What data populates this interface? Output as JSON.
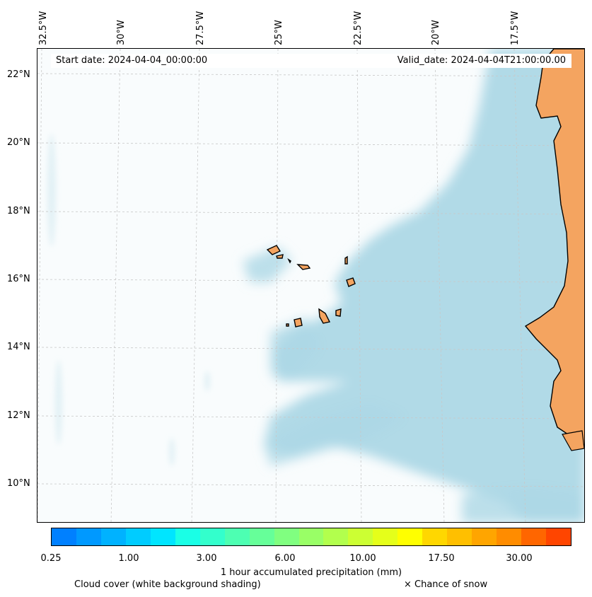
{
  "map": {
    "longitude_labels": [
      "32.5°W",
      "30°W",
      "27.5°W",
      "25°W",
      "22.5°W",
      "20°W",
      "17.5°W"
    ],
    "latitude_labels": [
      "22°N",
      "20°N",
      "18°N",
      "16°N",
      "14°N",
      "12°N",
      "10°N"
    ],
    "start_date": "Start date: 2024-04-04_00:00:00",
    "valid_date": "Valid_date: 2024-04-04T21:00:00.00",
    "colors": {
      "land": "#f4a460",
      "cloud": "#add8e6",
      "coast": "#000000",
      "grid": "#c8c8c8"
    }
  },
  "colorbar": {
    "colors": [
      "#0080ff",
      "#0099ff",
      "#00b2ff",
      "#00ccff",
      "#00e5ff",
      "#1affe6",
      "#33ffcc",
      "#4dffb2",
      "#66ff99",
      "#80ff80",
      "#99ff66",
      "#b2ff4d",
      "#ccff33",
      "#e5ff1a",
      "#ffff00",
      "#ffd700",
      "#ffbf00",
      "#ffa500",
      "#ff8c00",
      "#ff6600",
      "#ff4500"
    ],
    "tick_labels": [
      "0.25",
      "1.00",
      "3.00",
      "6.00",
      "10.00",
      "17.50",
      "30.00"
    ],
    "title": "1 hour accumulated precipitation (mm)"
  },
  "legend": {
    "cloud_cover": "Cloud cover (white background shading)",
    "snow": "× Chance of snow"
  }
}
